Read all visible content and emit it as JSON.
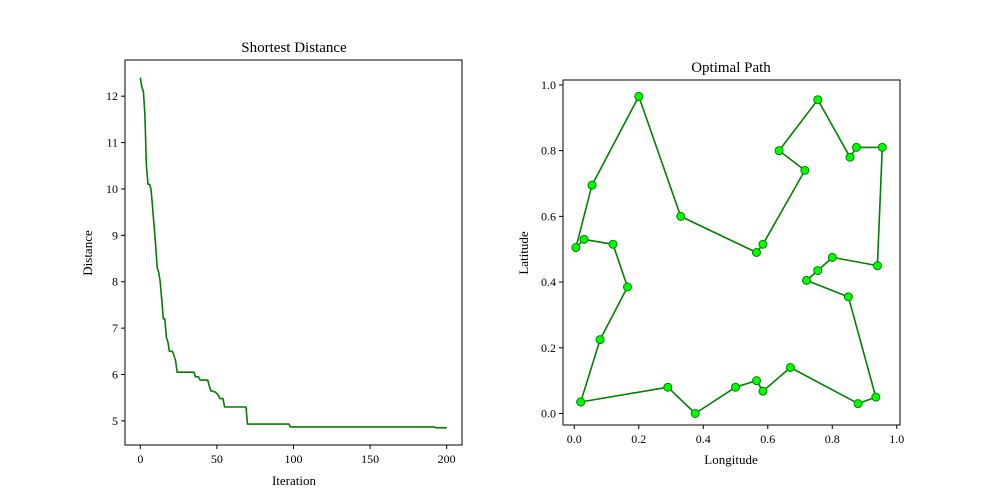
{
  "colors": {
    "line": "#008000",
    "marker_fill": "#00ff00",
    "marker_edge": "#008000",
    "axes": "#000000",
    "background": "#ffffff"
  },
  "chart_data": [
    {
      "type": "line",
      "title": "Shortest Distance",
      "xlabel": "Iteration",
      "ylabel": "Distance",
      "xlim": [
        -10,
        210
      ],
      "ylim": [
        4.48,
        12.78
      ],
      "xticks": [
        0,
        50,
        100,
        150,
        200
      ],
      "yticks": [
        5,
        6,
        7,
        8,
        9,
        10,
        11,
        12
      ],
      "grid": false,
      "series": [
        {
          "points": [
            [
              0,
              12.4
            ],
            [
              1,
              12.2
            ],
            [
              2,
              12.1
            ],
            [
              3,
              11.6
            ],
            [
              4,
              10.5
            ],
            [
              5,
              10.1
            ],
            [
              6,
              10.1
            ],
            [
              7,
              10.0
            ],
            [
              8,
              9.6
            ],
            [
              9,
              9.2
            ],
            [
              10,
              8.8
            ],
            [
              11,
              8.3
            ],
            [
              12,
              8.2
            ],
            [
              13,
              8.0
            ],
            [
              14,
              7.6
            ],
            [
              15,
              7.2
            ],
            [
              16,
              7.2
            ],
            [
              17,
              6.8
            ],
            [
              18,
              6.7
            ],
            [
              19,
              6.5
            ],
            [
              21,
              6.5
            ],
            [
              22,
              6.4
            ],
            [
              23,
              6.3
            ],
            [
              24,
              6.05
            ],
            [
              35,
              6.05
            ],
            [
              36,
              5.95
            ],
            [
              38,
              5.95
            ],
            [
              39,
              5.88
            ],
            [
              44,
              5.88
            ],
            [
              45,
              5.75
            ],
            [
              46,
              5.65
            ],
            [
              49,
              5.62
            ],
            [
              51,
              5.55
            ],
            [
              52,
              5.48
            ],
            [
              54,
              5.48
            ],
            [
              55,
              5.3
            ],
            [
              69,
              5.3
            ],
            [
              70,
              4.93
            ],
            [
              97,
              4.93
            ],
            [
              98,
              4.87
            ],
            [
              192,
              4.87
            ],
            [
              193,
              4.85
            ],
            [
              200,
              4.85
            ]
          ]
        }
      ]
    },
    {
      "type": "line",
      "title": "Optimal Path",
      "xlabel": "Longitude",
      "ylabel": "Latitude",
      "xlim": [
        -0.035,
        1.01
      ],
      "ylim": [
        -0.035,
        1.015
      ],
      "xticks": [
        "0.0",
        "0.2",
        "0.4",
        "0.6",
        "0.8",
        "1.0"
      ],
      "yticks": [
        "0.0",
        "0.2",
        "0.4",
        "0.6",
        "0.8",
        "1.0"
      ],
      "grid": false,
      "markers": true,
      "series": [
        {
          "points": [
            [
              0.02,
              0.035
            ],
            [
              0.29,
              0.08
            ],
            [
              0.375,
              0.0
            ],
            [
              0.5,
              0.08
            ],
            [
              0.565,
              0.1
            ],
            [
              0.585,
              0.068
            ],
            [
              0.67,
              0.14
            ],
            [
              0.88,
              0.03
            ],
            [
              0.935,
              0.05
            ],
            [
              0.85,
              0.355
            ],
            [
              0.72,
              0.405
            ],
            [
              0.755,
              0.435
            ],
            [
              0.8,
              0.475
            ],
            [
              0.94,
              0.45
            ],
            [
              0.955,
              0.81
            ],
            [
              0.875,
              0.81
            ],
            [
              0.855,
              0.78
            ],
            [
              0.755,
              0.955
            ],
            [
              0.635,
              0.8
            ],
            [
              0.715,
              0.74
            ],
            [
              0.585,
              0.515
            ],
            [
              0.565,
              0.49
            ],
            [
              0.33,
              0.6
            ],
            [
              0.2,
              0.965
            ],
            [
              0.055,
              0.695
            ],
            [
              0.005,
              0.505
            ],
            [
              0.03,
              0.53
            ],
            [
              0.12,
              0.515
            ],
            [
              0.165,
              0.385
            ],
            [
              0.08,
              0.225
            ],
            [
              0.02,
              0.035
            ]
          ]
        }
      ]
    }
  ]
}
